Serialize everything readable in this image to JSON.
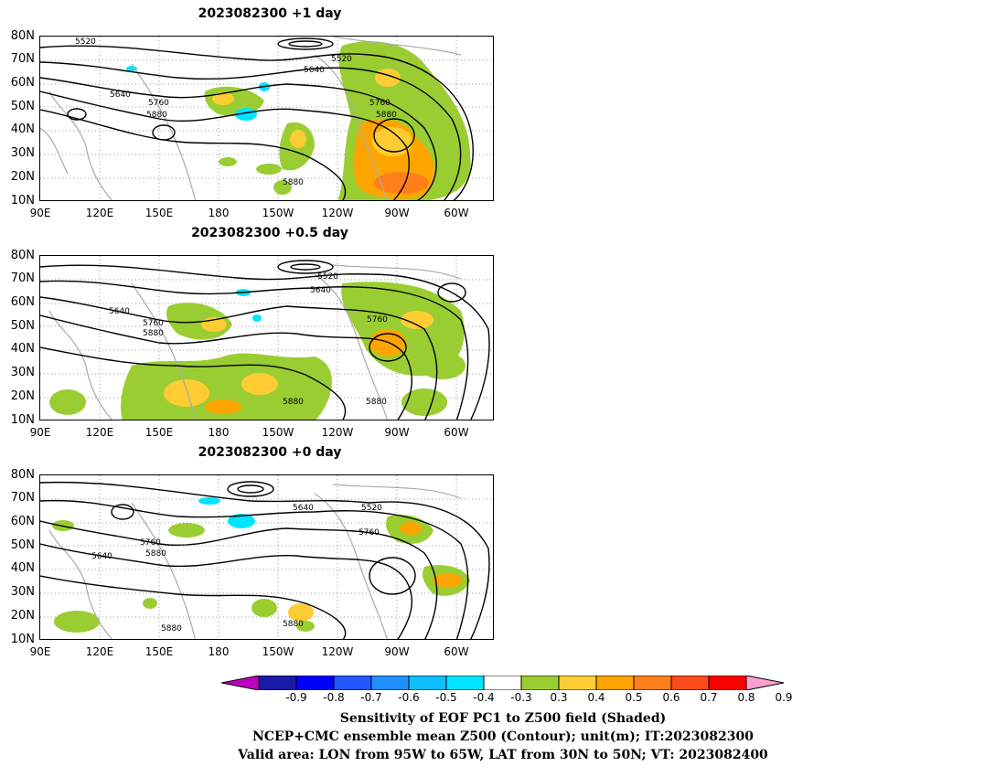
{
  "panels": [
    {
      "title": "2023082300  +1  day",
      "contour_labels": [
        "5520",
        "5520",
        "5640",
        "5640",
        "5760",
        "5760",
        "5880",
        "5880",
        "5880"
      ]
    },
    {
      "title": "2023082300  +0.5  day",
      "contour_labels": [
        "5520",
        "5640",
        "5640",
        "5760",
        "5760",
        "5880",
        "5880",
        "5880"
      ]
    },
    {
      "title": "2023082300  +0  day",
      "contour_labels": [
        "5520",
        "5640",
        "5640",
        "5760",
        "5760",
        "5880",
        "5880",
        "5880"
      ]
    }
  ],
  "axes": {
    "lat_ticks": [
      "80N",
      "70N",
      "60N",
      "50N",
      "40N",
      "30N",
      "20N",
      "10N"
    ],
    "lon_ticks": [
      "90E",
      "120E",
      "150E",
      "180",
      "150W",
      "120W",
      "90W",
      "60W"
    ]
  },
  "colorbar": {
    "ticks": [
      "-0.9",
      "-0.8",
      "-0.7",
      "-0.6",
      "-0.5",
      "-0.4",
      "-0.3",
      "0.3",
      "0.4",
      "0.5",
      "0.6",
      "0.7",
      "0.8",
      "0.9"
    ],
    "colors": [
      "#c000c0",
      "#1a1aa8",
      "#0000ff",
      "#2255ff",
      "#1f8fff",
      "#10bfff",
      "#00e5ff",
      "#ffffff",
      "#9acd32",
      "#ffcc33",
      "#ffa500",
      "#ff7f1a",
      "#ff4a1a",
      "#ff0000",
      "#ff9ecf"
    ]
  },
  "caption": {
    "line1": "Sensitivity of EOF PC1 to Z500 field (Shaded)",
    "line2": "NCEP+CMC ensemble mean Z500 (Contour); unit(m); IT:2023082300",
    "line3": "Valid area: LON from 95W to 65W, LAT from 30N to 50N; VT: 2023082400"
  }
}
